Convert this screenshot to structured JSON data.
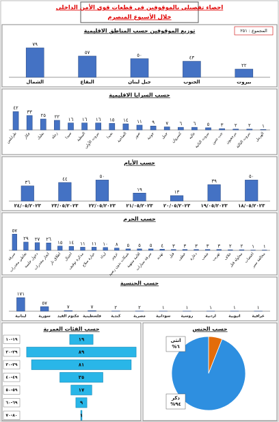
{
  "header": {
    "title": "احصاء تفصيلي بالموقوفين في قطعات قوى الأمن الداخلي",
    "subtitle": "خلال الأسبوع المنصرم"
  },
  "chart_data": [
    {
      "type": "bar",
      "title": "توزيع الموقوفين حسب المناطق الاقليمية",
      "annotation": "المجموع : ٢٥١",
      "categories": [
        "الشمال",
        "البقاع",
        "جبل لبنان",
        "الجنوب",
        "بيروت"
      ],
      "values": [
        79,
        57,
        50,
        43,
        22
      ],
      "value_labels": [
        "٧٩",
        "٥٧",
        "٥٠",
        "٤٣",
        "٢٢"
      ],
      "color": "#4472c4",
      "ylim": [
        0,
        90
      ]
    },
    {
      "type": "bar",
      "title": "حسب السرايا الاقليمية",
      "categories": [
        "طرابلس",
        "عكار",
        "بعلبك",
        "زحلة",
        "صيدا",
        "النبطية",
        "بيروت الأولى",
        "بعبدا",
        "الضاحية",
        "صور",
        "جونية",
        "جبيل",
        "كسروان",
        "عاليه",
        "بيروت الثانية",
        "جب جنين",
        "مرجعيون",
        "بيروت الثالثة",
        "الهرمل"
      ],
      "values": [
        42,
        33,
        25,
        22,
        16,
        16,
        16,
        15,
        14,
        11,
        9,
        7,
        6,
        6,
        5,
        3,
        2,
        2,
        1
      ],
      "value_labels": [
        "٤٢",
        "٣٣",
        "٢٥",
        "٢٢",
        "١٦",
        "١٦",
        "١٦",
        "١٥",
        "١٤",
        "١١",
        "٩",
        "٧",
        "٦",
        "٦",
        "٥",
        "٣",
        "٢",
        "٢",
        "١"
      ],
      "color": "#4472c4",
      "ylim": [
        0,
        50
      ]
    },
    {
      "type": "bar",
      "title": "حسب الأيام",
      "categories": [
        "٢٤/٠٥/٢٠٢٣",
        "٢٣/٠٥/٢٠٢٣",
        "٢٢/٠٥/٢٠٢٣",
        "٢١/٠٥/٢٠٢٣",
        "٢٠/٠٥/٢٠٢٣",
        "١٩/٠٥/٢٠٢٣",
        "١٨/٠٥/٢٠٢٣"
      ],
      "values": [
        36,
        44,
        50,
        19,
        13,
        39,
        50
      ],
      "value_labels": [
        "٣٦",
        "٤٤",
        "٥٠",
        "١٩",
        "١٣",
        "٣٩",
        "٥٠"
      ],
      "color": "#4472c4",
      "ylim": [
        0,
        60
      ]
    },
    {
      "type": "bar",
      "title": "حسب الجرم",
      "categories": [
        "سرقة",
        "تعاطي مخدرات",
        "دخول خلسة",
        "اتجار مخدرات",
        "اطلاق نار",
        "احتيال",
        "مذكرة توقيف",
        "حيازة سلاح",
        "ايذاء",
        "تزوير",
        "شيكات بدون رصيد",
        "اقامة منتهية",
        "سرقة سيارات",
        "تهديد",
        "قتل",
        "خطف",
        "دعارة",
        "شغب",
        "تهريب",
        "خلاف",
        "محاولة قتل",
        "اغتصاب",
        "مخالفة سير"
      ],
      "values": [
        57,
        29,
        27,
        26,
        15,
        14,
        11,
        11,
        10,
        8,
        5,
        5,
        5,
        4,
        3,
        3,
        3,
        3,
        3,
        2,
        2,
        1,
        1
      ],
      "value_labels": [
        "٥٧",
        "٢٩",
        "٢٧",
        "٢٦",
        "١٥",
        "١٤",
        "١١",
        "١١",
        "١٠",
        "٨",
        "٥",
        "٥",
        "٥",
        "٤",
        "٣",
        "٣",
        "٣",
        "٣",
        "٣",
        "٢",
        "٢",
        "١",
        "١"
      ],
      "color": "#4472c4",
      "ylim": [
        0,
        65
      ]
    },
    {
      "type": "bar",
      "title": "حسب الجنسية",
      "categories": [
        "لبنانية",
        "سورية",
        "مكتوم القيد",
        "فلسطينية",
        "كندية",
        "مصرية",
        "سودانية",
        "روسية",
        "اردنية",
        "اثيوبية",
        "عراقية"
      ],
      "values": [
        171,
        57,
        7,
        7,
        2,
        2,
        1,
        1,
        1,
        1,
        1
      ],
      "value_labels": [
        "١٧١",
        "٥٧",
        "٧",
        "٧",
        "٢",
        "٢",
        "١",
        "١",
        "١",
        "١",
        "١"
      ],
      "color": "#4472c4",
      "ylim": [
        0,
        190
      ]
    },
    {
      "type": "funnel",
      "title": "حسب الفئات العمرية",
      "categories": [
        "١٩-١٠",
        "٢٩-٢٠",
        "٣٩-٣٠",
        "٤٩-٤٠",
        "٥٩-٥٠",
        "٦٩-٦٠",
        "٨٠-٧٠"
      ],
      "values": [
        19,
        89,
        81,
        35,
        17,
        9,
        1
      ],
      "value_labels": [
        "١٩",
        "٨٩",
        "٨١",
        "٣٥",
        "١٧",
        "٩",
        "١"
      ],
      "color": "#29b6e8",
      "xlim": [
        0,
        100
      ]
    },
    {
      "type": "pie",
      "title": "حسب الجنس",
      "categories": [
        "ذكر",
        "انثى"
      ],
      "values": [
        94,
        6
      ],
      "value_labels": [
        "%٩٤",
        "%٦"
      ],
      "colors": [
        "#2e8fe0",
        "#e36c0a"
      ]
    }
  ]
}
